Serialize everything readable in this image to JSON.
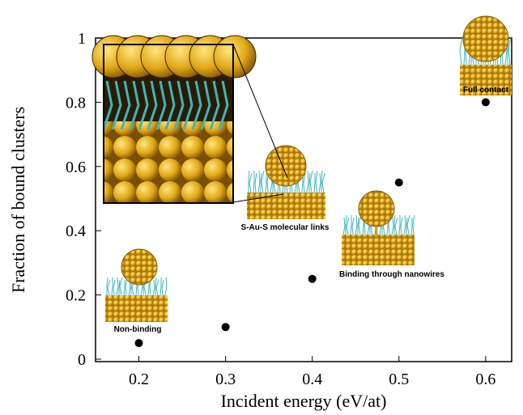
{
  "chart_data": {
    "type": "scatter",
    "x": [
      0.2,
      0.3,
      0.4,
      0.5,
      0.6
    ],
    "values": [
      0.05,
      0.1,
      0.25,
      0.55,
      0.8
    ],
    "color": "#000000",
    "xlim": [
      0.15,
      0.63
    ],
    "xticks": [
      0.2,
      0.3,
      0.4,
      0.5,
      0.6
    ],
    "ylim": [
      0,
      1
    ],
    "yticks": [
      0,
      0.2,
      0.4,
      0.6,
      0.8,
      1
    ],
    "x_label": "Incident energy (eV/at)",
    "y_label": "Fraction of bound clusters",
    "annotations": [
      "Non-binding",
      "S-Au-S molecular links",
      "Binding through nanowires",
      "Full contact"
    ]
  }
}
